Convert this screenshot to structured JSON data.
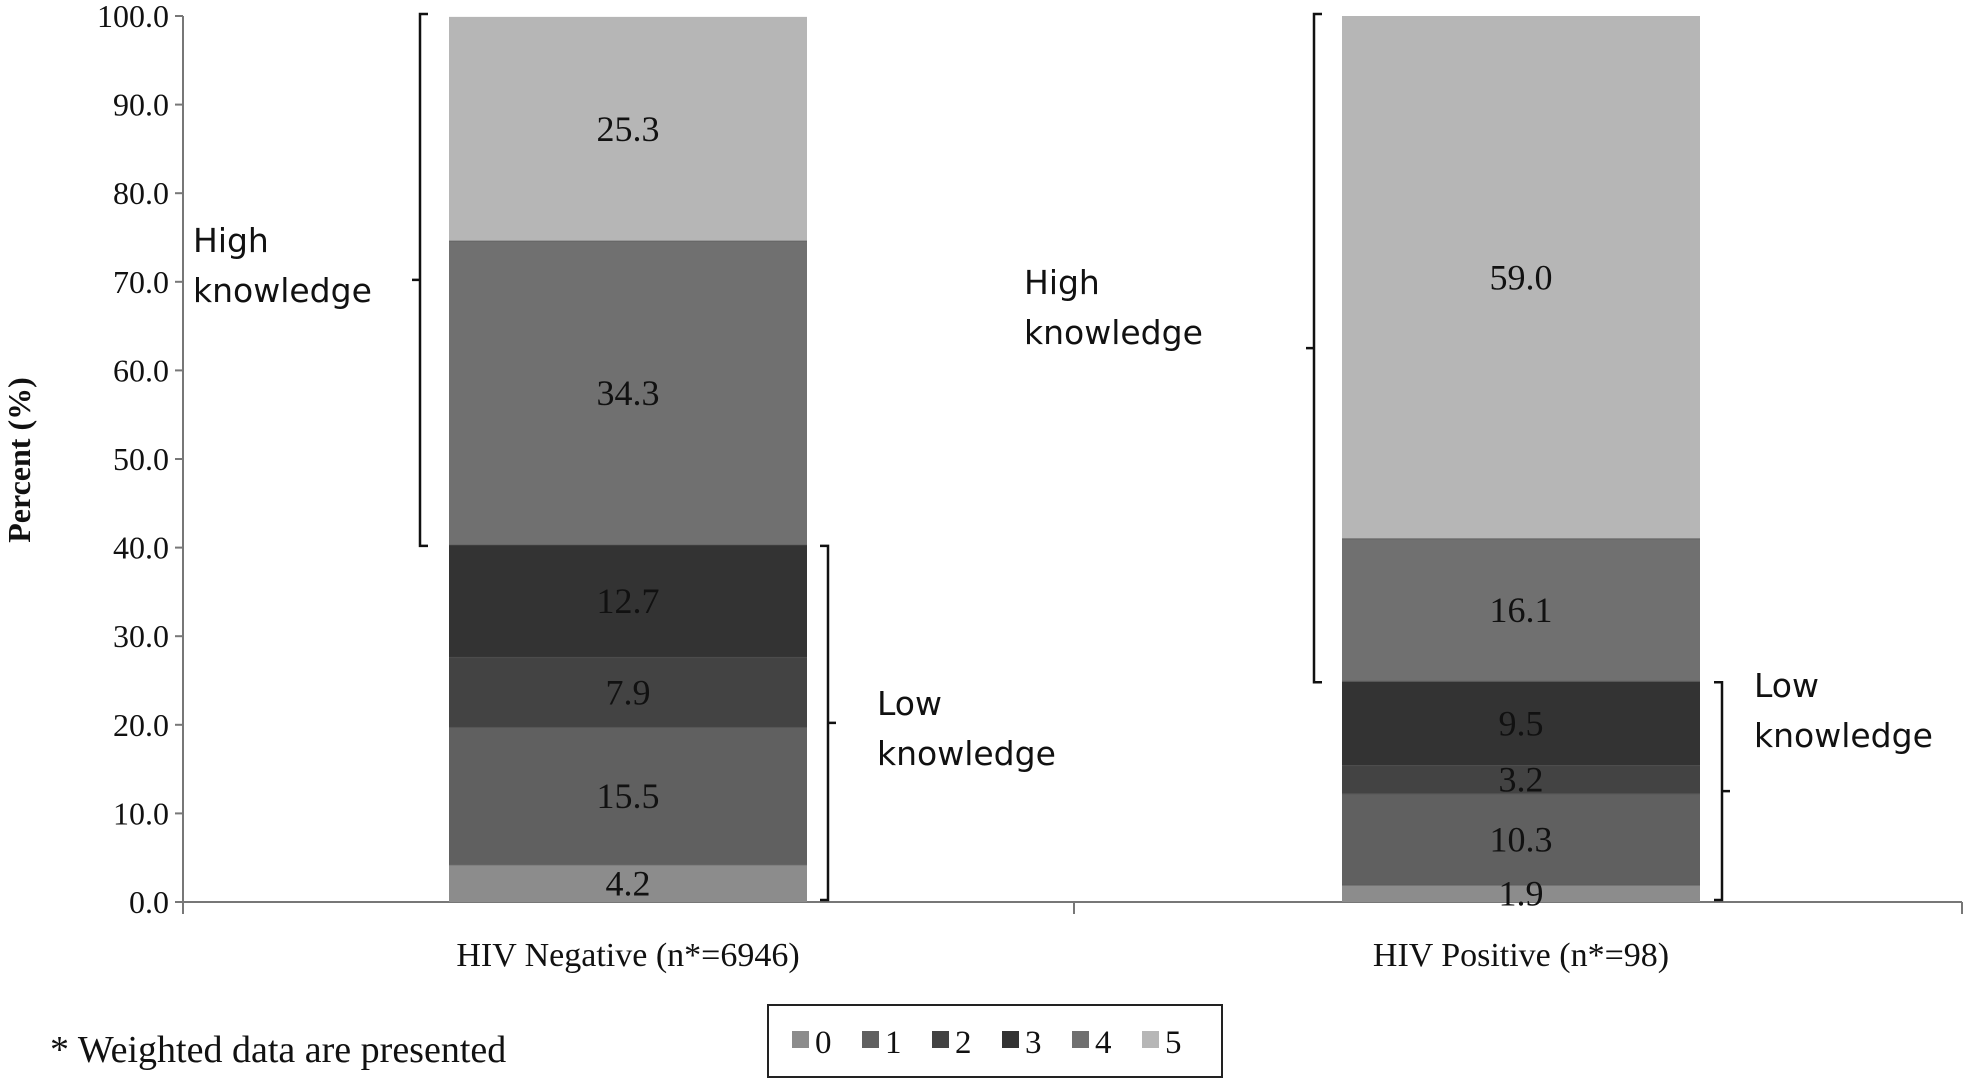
{
  "chart_data": {
    "type": "bar",
    "stacked": true,
    "ylabel": "Percent (%)",
    "xlabel": "",
    "ylim": [
      0,
      100
    ],
    "yticks": [
      "0.0",
      "10.0",
      "20.0",
      "30.0",
      "40.0",
      "50.0",
      "60.0",
      "70.0",
      "80.0",
      "90.0",
      "100.0"
    ],
    "categories": [
      "HIV Negative (n*=6946)",
      "HIV Positive (n*=98)"
    ],
    "series": [
      {
        "name": "0",
        "color": "#8c8c8c",
        "values": [
          4.2,
          1.9
        ],
        "labels": [
          "4.2",
          "1.9"
        ]
      },
      {
        "name": "1",
        "color": "#606060",
        "values": [
          15.5,
          10.3
        ],
        "labels": [
          "15.5",
          "10.3"
        ]
      },
      {
        "name": "2",
        "color": "#434343",
        "values": [
          7.9,
          3.2
        ],
        "labels": [
          "7.9",
          "3.2"
        ]
      },
      {
        "name": "3",
        "color": "#333333",
        "values": [
          12.7,
          9.5
        ],
        "labels": [
          "12.7",
          "9.5"
        ]
      },
      {
        "name": "4",
        "color": "#707070",
        "values": [
          34.3,
          16.1
        ],
        "labels": [
          "34.3",
          "16.1"
        ]
      },
      {
        "name": "5",
        "color": "#b6b6b6",
        "values": [
          25.3,
          59.0
        ],
        "labels": [
          "25.3",
          "59.0"
        ]
      }
    ],
    "annotations": [
      {
        "line1": "High",
        "line2": "knowledge",
        "category": 0,
        "range": [
          40.2,
          100
        ]
      },
      {
        "line1": "Low",
        "line2": "knowledge",
        "category": 0,
        "range": [
          0,
          40.2
        ]
      },
      {
        "line1": "High",
        "line2": "knowledge",
        "category": 1,
        "range": [
          24.8,
          100
        ]
      },
      {
        "line1": "Low",
        "line2": "knowledge",
        "category": 1,
        "range": [
          0,
          24.8
        ]
      }
    ],
    "legend": {
      "position": "bottom",
      "boxed": true
    },
    "footnote": "* Weighted data are presented"
  }
}
